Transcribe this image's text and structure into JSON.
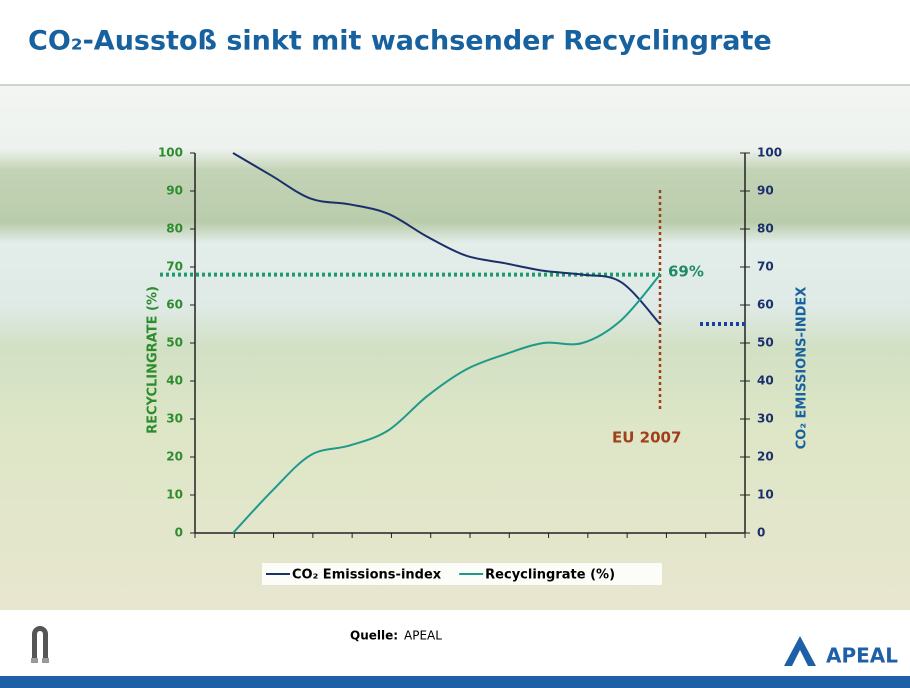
{
  "header": {
    "title": "CO₂-Ausstoß sinkt mit wachsender Recyclingrate"
  },
  "chart_data": {
    "type": "line",
    "categories": [
      null,
      null,
      null,
      null,
      null,
      null,
      null,
      null,
      null,
      null,
      null,
      null
    ],
    "series": [
      {
        "name": "CO₂ Emissions-index",
        "color": "#1b2f6b",
        "axis": "y2",
        "values": [
          100,
          94,
          88,
          86.5,
          84,
          78,
          73,
          71,
          69,
          68,
          66,
          55
        ]
      },
      {
        "name": "Recyclingrate (%)",
        "color": "#1f9a8a",
        "values": [
          0,
          11,
          20.5,
          23,
          27,
          36,
          43,
          47,
          50,
          50,
          56,
          68
        ]
      }
    ],
    "ylim": [
      0,
      100
    ],
    "yticks": [
      0,
      10,
      20,
      30,
      40,
      50,
      60,
      70,
      80,
      90,
      100
    ],
    "y2lim": [
      0,
      100
    ],
    "y2ticks": [
      0,
      10,
      20,
      30,
      40,
      50,
      60,
      70,
      80,
      90,
      100
    ],
    "ylabel": "RECYCLINGRATE (%)",
    "y2label": "CO₂ EMISSIONS-INDEX",
    "annotations": [
      "69%",
      "EU 2007"
    ],
    "legend": "bottom"
  },
  "footer": {
    "source_label": "Quelle:",
    "source": "APEAL",
    "logo": "APEAL"
  }
}
